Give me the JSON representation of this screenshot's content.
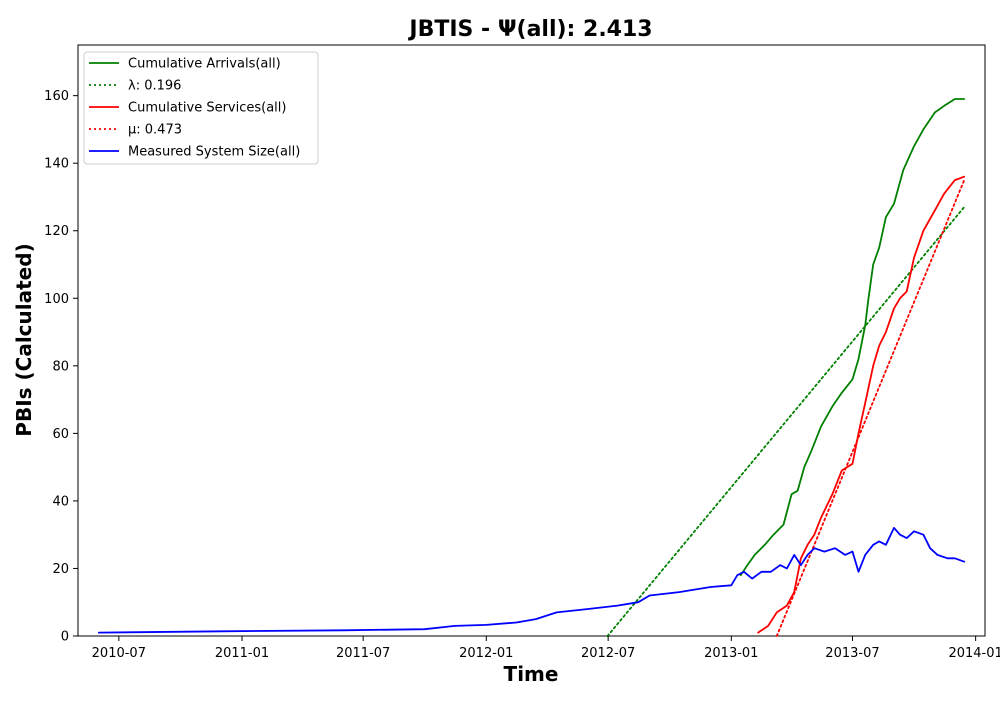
{
  "chart_data": {
    "type": "line",
    "title": "JBTIS -  Ψ(all): 2.413",
    "xlabel": "Time",
    "ylabel": "PBIs (Calculated)",
    "ylim": [
      0,
      175
    ],
    "xlim": [
      "2010-05-01",
      "2014-01-15"
    ],
    "x_ticks": [
      "2010-07-01",
      "2011-01-01",
      "2011-07-01",
      "2012-01-01",
      "2012-07-01",
      "2013-01-01",
      "2013-07-01",
      "2014-01-01"
    ],
    "x_tick_labels": [
      "2010-07",
      "2011-01",
      "2011-07",
      "2012-01",
      "2012-07",
      "2013-01",
      "2013-07",
      "2014-01"
    ],
    "y_ticks": [
      0,
      20,
      40,
      60,
      80,
      100,
      120,
      140,
      160
    ],
    "y_tick_labels": [
      "0",
      "20",
      "40",
      "60",
      "80",
      "100",
      "120",
      "140",
      "160"
    ],
    "grid": false,
    "legend_position": "top-left",
    "series": [
      {
        "name": "Cumulative Arrivals(all)",
        "style": "solid",
        "color": "#008000",
        "points": [
          [
            "2013-01-15",
            18
          ],
          [
            "2013-01-25",
            21
          ],
          [
            "2013-02-05",
            24
          ],
          [
            "2013-02-20",
            27
          ],
          [
            "2013-03-05",
            30
          ],
          [
            "2013-03-20",
            33
          ],
          [
            "2013-04-01",
            42
          ],
          [
            "2013-04-10",
            43
          ],
          [
            "2013-04-20",
            50
          ],
          [
            "2013-05-01",
            55
          ],
          [
            "2013-05-15",
            62
          ],
          [
            "2013-06-01",
            68
          ],
          [
            "2013-06-15",
            72
          ],
          [
            "2013-07-01",
            76
          ],
          [
            "2013-07-10",
            82
          ],
          [
            "2013-07-20",
            92
          ],
          [
            "2013-07-25",
            100
          ],
          [
            "2013-08-01",
            110
          ],
          [
            "2013-08-10",
            115
          ],
          [
            "2013-08-20",
            124
          ],
          [
            "2013-09-01",
            128
          ],
          [
            "2013-09-15",
            138
          ],
          [
            "2013-10-01",
            145
          ],
          [
            "2013-10-15",
            150
          ],
          [
            "2013-11-01",
            155
          ],
          [
            "2013-11-15",
            157
          ],
          [
            "2013-12-01",
            159
          ],
          [
            "2013-12-15",
            159
          ]
        ]
      },
      {
        "name": "λ: 0.196",
        "style": "dotted",
        "color": "#008000",
        "points": [
          [
            "2012-06-30",
            0
          ],
          [
            "2013-12-15",
            127
          ]
        ]
      },
      {
        "name": "Cumulative Services(all)",
        "style": "solid",
        "color": "#ff0000",
        "points": [
          [
            "2013-02-10",
            1
          ],
          [
            "2013-02-25",
            3
          ],
          [
            "2013-03-10",
            7
          ],
          [
            "2013-03-25",
            9
          ],
          [
            "2013-04-05",
            13
          ],
          [
            "2013-04-15",
            23
          ],
          [
            "2013-04-25",
            27
          ],
          [
            "2013-05-05",
            30
          ],
          [
            "2013-05-15",
            35
          ],
          [
            "2013-06-01",
            42
          ],
          [
            "2013-06-15",
            49
          ],
          [
            "2013-07-01",
            51
          ],
          [
            "2013-07-10",
            60
          ],
          [
            "2013-07-20",
            69
          ],
          [
            "2013-08-01",
            80
          ],
          [
            "2013-08-10",
            86
          ],
          [
            "2013-08-20",
            90
          ],
          [
            "2013-09-01",
            97
          ],
          [
            "2013-09-10",
            100
          ],
          [
            "2013-09-20",
            102
          ],
          [
            "2013-10-01",
            112
          ],
          [
            "2013-10-15",
            120
          ],
          [
            "2013-11-01",
            126
          ],
          [
            "2013-11-15",
            131
          ],
          [
            "2013-12-01",
            135
          ],
          [
            "2013-12-15",
            136
          ]
        ]
      },
      {
        "name": "μ: 0.473",
        "style": "dotted",
        "color": "#ff0000",
        "points": [
          [
            "2013-03-10",
            0
          ],
          [
            "2013-12-15",
            135
          ]
        ]
      },
      {
        "name": "Measured System Size(all)",
        "style": "solid",
        "color": "#0000ff",
        "points": [
          [
            "2010-06-01",
            1
          ],
          [
            "2010-12-01",
            1.4
          ],
          [
            "2011-06-01",
            1.7
          ],
          [
            "2011-10-01",
            2
          ],
          [
            "2011-11-15",
            3
          ],
          [
            "2012-01-01",
            3.3
          ],
          [
            "2012-02-15",
            4
          ],
          [
            "2012-03-15",
            5
          ],
          [
            "2012-04-15",
            7
          ],
          [
            "2012-06-01",
            8
          ],
          [
            "2012-07-15",
            9
          ],
          [
            "2012-08-15",
            10
          ],
          [
            "2012-09-01",
            12
          ],
          [
            "2012-10-15",
            13
          ],
          [
            "2012-12-01",
            14.5
          ],
          [
            "2013-01-01",
            15
          ],
          [
            "2013-01-10",
            18
          ],
          [
            "2013-01-20",
            19
          ],
          [
            "2013-02-01",
            17
          ],
          [
            "2013-02-15",
            19
          ],
          [
            "2013-03-01",
            19
          ],
          [
            "2013-03-15",
            21
          ],
          [
            "2013-03-25",
            20
          ],
          [
            "2013-04-05",
            24
          ],
          [
            "2013-04-15",
            21
          ],
          [
            "2013-04-25",
            24
          ],
          [
            "2013-05-05",
            26
          ],
          [
            "2013-05-20",
            25
          ],
          [
            "2013-06-05",
            26
          ],
          [
            "2013-06-20",
            24
          ],
          [
            "2013-07-01",
            25
          ],
          [
            "2013-07-10",
            19
          ],
          [
            "2013-07-20",
            24
          ],
          [
            "2013-08-01",
            27
          ],
          [
            "2013-08-10",
            28
          ],
          [
            "2013-08-20",
            27
          ],
          [
            "2013-09-01",
            32
          ],
          [
            "2013-09-10",
            30
          ],
          [
            "2013-09-20",
            29
          ],
          [
            "2013-10-01",
            31
          ],
          [
            "2013-10-15",
            30
          ],
          [
            "2013-10-25",
            26
          ],
          [
            "2013-11-05",
            24
          ],
          [
            "2013-11-20",
            23
          ],
          [
            "2013-12-01",
            23
          ],
          [
            "2013-12-15",
            22
          ]
        ]
      }
    ]
  }
}
